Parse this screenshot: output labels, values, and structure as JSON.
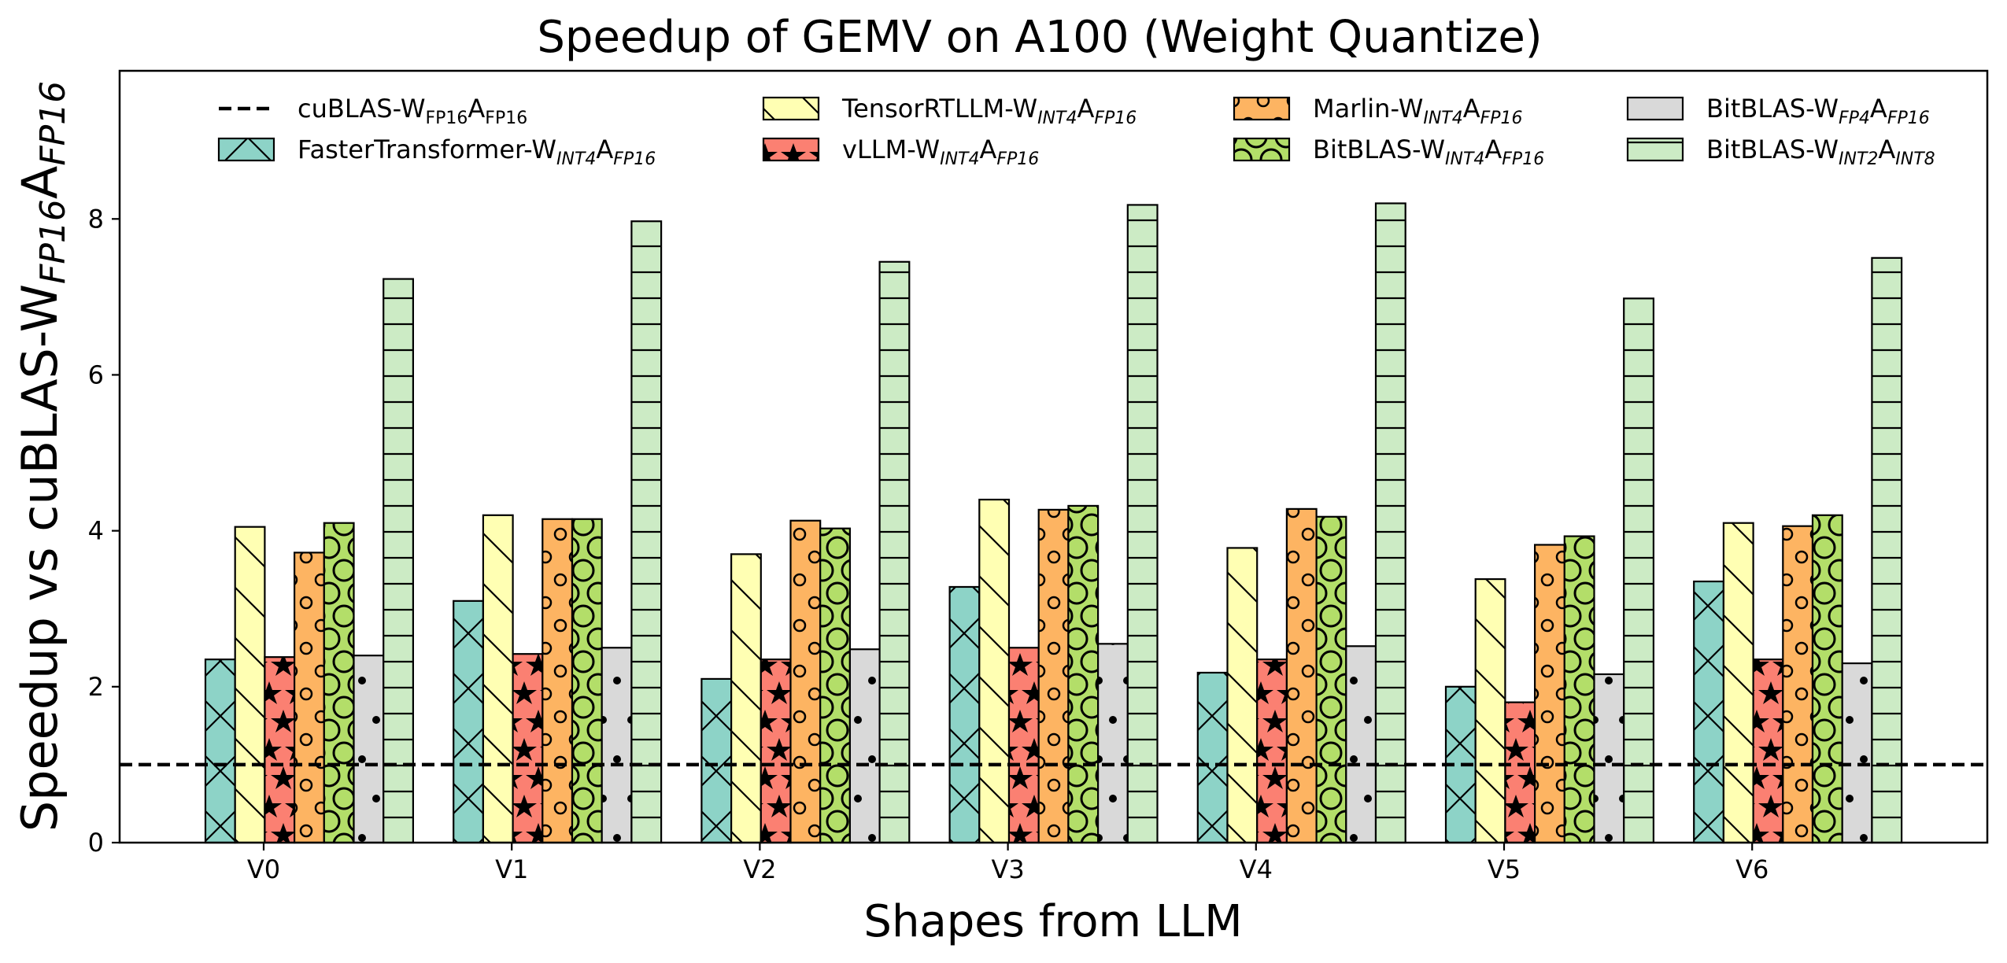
{
  "chart_data": {
    "type": "bar",
    "title": "Speedup of GEMV on A100 (Weight Quantize)",
    "xlabel": "Shapes from LLM",
    "ylabel": {
      "base": "Speedup vs cuBLAS-W",
      "sub1": "FP16",
      "mid": "A",
      "sub2": "FP16"
    },
    "ylim": [
      0,
      9.9
    ],
    "yticks": [
      "0",
      "2",
      "4",
      "6",
      "8"
    ],
    "categories": [
      "V0",
      "V1",
      "V2",
      "V3",
      "V4",
      "V5",
      "V6"
    ],
    "baseline": {
      "value": 1.0,
      "label": {
        "p1": "cuBLAS-W",
        "s1": "FP16",
        "p2": "A",
        "s2": "FP16",
        "s1_italic": false,
        "s2_italic": false
      }
    },
    "series": [
      {
        "name": "FasterTransformer-W_INT4A_FP16",
        "label": {
          "p1": "FasterTransformer-W",
          "s1": "INT4",
          "p2": "A",
          "s2": "FP16",
          "s1_italic": true,
          "s2_italic": true
        },
        "color": "#8dd3c7",
        "pattern": "cross",
        "values": [
          2.35,
          3.1,
          2.1,
          3.28,
          2.18,
          2.0,
          3.35
        ]
      },
      {
        "name": "TensorRTLLM-W_INT4A_FP16",
        "label": {
          "p1": "TensorRTLLM-W",
          "s1": "INT4",
          "p2": "A",
          "s2": "FP16",
          "s1_italic": true,
          "s2_italic": true
        },
        "color": "#ffffb3",
        "pattern": "backslash",
        "values": [
          4.05,
          4.2,
          3.7,
          4.4,
          3.78,
          3.38,
          4.1
        ]
      },
      {
        "name": "vLLM-W_INT4A_FP16",
        "label": {
          "p1": "vLLM-W",
          "s1": "INT4",
          "p2": "A",
          "s2": "FP16",
          "s1_italic": true,
          "s2_italic": true
        },
        "color": "#fb8072",
        "pattern": "star",
        "values": [
          2.38,
          2.42,
          2.35,
          2.5,
          2.35,
          1.8,
          2.35
        ]
      },
      {
        "name": "Marlin-W_INT4A_FP16",
        "label": {
          "p1": "Marlin-W",
          "s1": "INT4",
          "p2": "A",
          "s2": "FP16",
          "s1_italic": true,
          "s2_italic": true
        },
        "color": "#fdb462",
        "pattern": "smallcircle",
        "values": [
          3.72,
          4.15,
          4.13,
          4.27,
          4.28,
          3.82,
          4.06
        ]
      },
      {
        "name": "BitBLAS-W_INT4A_FP16",
        "label": {
          "p1": "BitBLAS-W",
          "s1": "INT4",
          "p2": "A",
          "s2": "FP16",
          "s1_italic": true,
          "s2_italic": true
        },
        "color": "#b3de69",
        "pattern": "bigcircle",
        "values": [
          4.1,
          4.15,
          4.03,
          4.32,
          4.18,
          3.93,
          4.2
        ]
      },
      {
        "name": "BitBLAS-W_FP4A_FP16",
        "label": {
          "p1": "BitBLAS-W",
          "s1": "FP4",
          "p2": "A",
          "s2": "FP16",
          "s1_italic": true,
          "s2_italic": true
        },
        "color": "#d9d9d9",
        "pattern": "dot",
        "values": [
          2.4,
          2.5,
          2.48,
          2.55,
          2.52,
          2.16,
          2.3
        ]
      },
      {
        "name": "BitBLAS-W_INT2A_INT8",
        "label": {
          "p1": "BitBLAS-W",
          "s1": "INT2",
          "p2": "A",
          "s2": "INT8",
          "s1_italic": true,
          "s2_italic": true
        },
        "color": "#ccebc5",
        "pattern": "hline",
        "values": [
          7.23,
          7.97,
          7.45,
          8.18,
          8.2,
          6.98,
          7.5
        ]
      }
    ],
    "legend_position": "top, 4 columns inside axes"
  }
}
